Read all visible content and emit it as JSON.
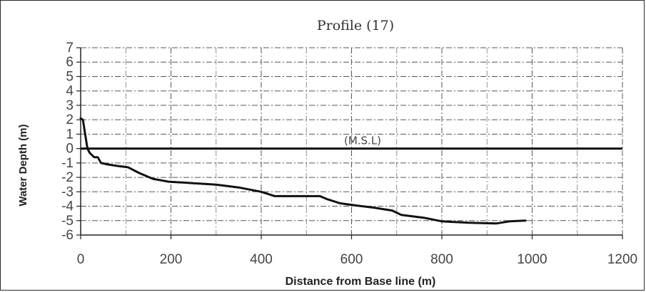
{
  "chart_data": {
    "type": "line",
    "title": "Profile (17)",
    "xlabel": "Distance from Base line (m)",
    "ylabel": "Water Depth (m)",
    "xlim": [
      0,
      1200
    ],
    "ylim": [
      -6,
      7
    ],
    "xticks": [
      0,
      200,
      400,
      600,
      800,
      1000,
      1200
    ],
    "yticks": [
      7,
      6,
      5,
      4,
      3,
      2,
      1,
      0,
      -1,
      -2,
      -3,
      -4,
      -5,
      -6
    ],
    "grid": true,
    "reference_line": {
      "y": 0,
      "label": "(M.S.L)"
    },
    "series": [
      {
        "x": [
          0,
          5,
          10,
          15,
          20,
          30,
          38,
          45,
          60,
          80,
          105,
          130,
          160,
          195,
          250,
          300,
          350,
          400,
          430,
          470,
          530,
          545,
          575,
          610,
          650,
          690,
          710,
          760,
          800,
          860,
          920,
          950,
          985
        ],
        "y": [
          2.1,
          2.0,
          1.0,
          0.0,
          -0.3,
          -0.6,
          -0.6,
          -1.0,
          -1.1,
          -1.2,
          -1.3,
          -1.7,
          -2.1,
          -2.3,
          -2.4,
          -2.5,
          -2.7,
          -3.0,
          -3.3,
          -3.3,
          -3.3,
          -3.5,
          -3.8,
          -3.95,
          -4.1,
          -4.3,
          -4.6,
          -4.8,
          -5.05,
          -5.15,
          -5.2,
          -5.05,
          -5.0
        ]
      }
    ]
  }
}
